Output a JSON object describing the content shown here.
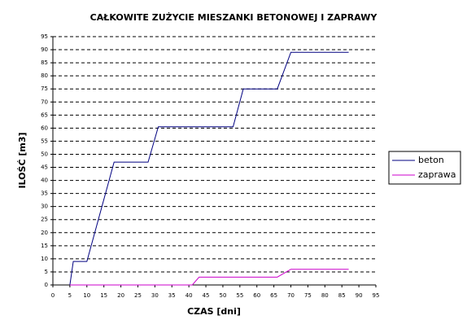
{
  "chart_data": {
    "type": "line",
    "title": "CAŁKOWITE ZUŻYCIE MIESZANKI BETONOWEJ I ZAPRAWY",
    "xlabel": "CZAS [dni]",
    "ylabel": "ILOŚĆ [m3]",
    "xlim": [
      0,
      95
    ],
    "ylim": [
      0,
      95
    ],
    "xticks": [
      0,
      5,
      10,
      15,
      20,
      25,
      30,
      35,
      40,
      45,
      50,
      55,
      60,
      65,
      70,
      75,
      80,
      85,
      90,
      95
    ],
    "yticks": [
      0,
      5,
      10,
      15,
      20,
      25,
      30,
      35,
      40,
      45,
      50,
      55,
      60,
      65,
      70,
      75,
      80,
      85,
      90,
      95
    ],
    "grid": true,
    "legend": "right",
    "series": [
      {
        "name": "beton",
        "color": "#000080",
        "x": [
          5,
          6,
          10,
          18,
          28,
          31,
          53,
          56,
          66,
          70,
          87
        ],
        "values": [
          0,
          9,
          9,
          47,
          47,
          60.5,
          60.5,
          75,
          75,
          89,
          89
        ]
      },
      {
        "name": "zaprawa",
        "color": "#cc00cc",
        "x": [
          5,
          41,
          43,
          66,
          70,
          87
        ],
        "values": [
          0,
          0,
          3,
          3,
          6,
          6
        ]
      }
    ]
  }
}
